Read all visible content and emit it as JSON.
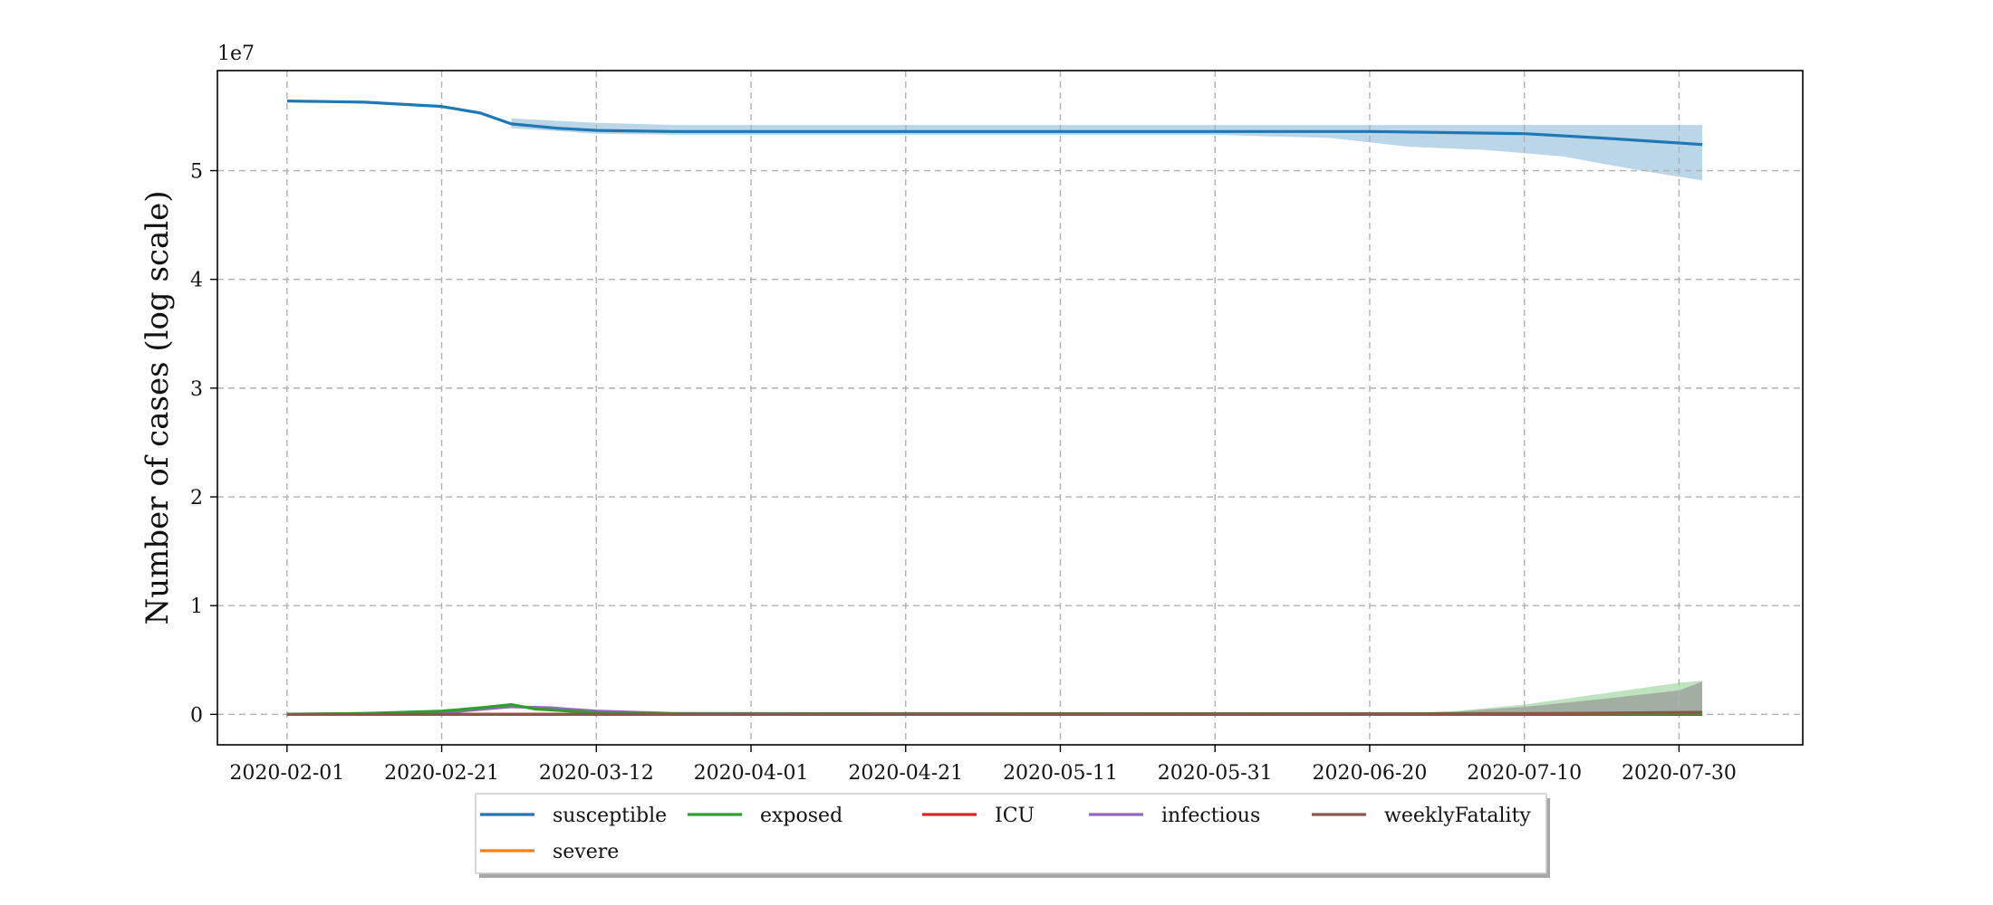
{
  "chart_data": {
    "type": "line",
    "title": "",
    "xlabel": "",
    "ylabel": "Number of cases (log scale)",
    "y_offset_text": "1e7",
    "x_type": "date",
    "x_tick_labels": [
      "2020-02-01",
      "2020-02-21",
      "2020-03-12",
      "2020-04-01",
      "2020-04-21",
      "2020-05-11",
      "2020-05-31",
      "2020-06-20",
      "2020-07-10",
      "2020-07-30"
    ],
    "y_tick_labels": [
      "0",
      "1",
      "2",
      "3",
      "4",
      "5"
    ],
    "y_ticks": [
      0,
      10000000,
      20000000,
      30000000,
      40000000,
      50000000
    ],
    "xlim": [
      "2020-01-23",
      "2020-08-15"
    ],
    "ylim": [
      -2800000,
      59200000
    ],
    "grid": true,
    "legend_position": "bottom-center",
    "series": [
      {
        "name": "susceptible",
        "color": "#1f77b4",
        "points": [
          [
            "2020-02-01",
            56400000
          ],
          [
            "2020-02-11",
            56300000
          ],
          [
            "2020-02-21",
            55900000
          ],
          [
            "2020-02-26",
            55300000
          ],
          [
            "2020-03-01",
            54300000
          ],
          [
            "2020-03-07",
            53900000
          ],
          [
            "2020-03-12",
            53700000
          ],
          [
            "2020-03-22",
            53600000
          ],
          [
            "2020-04-21",
            53600000
          ],
          [
            "2020-05-31",
            53600000
          ],
          [
            "2020-06-20",
            53600000
          ],
          [
            "2020-07-10",
            53400000
          ],
          [
            "2020-07-20",
            53000000
          ],
          [
            "2020-08-02",
            52400000
          ]
        ],
        "band_upper": [
          [
            "2020-03-01",
            54800000
          ],
          [
            "2020-03-12",
            54400000
          ],
          [
            "2020-03-22",
            54200000
          ],
          [
            "2020-08-02",
            54200000
          ]
        ],
        "band_lower": [
          [
            "2020-03-01",
            53900000
          ],
          [
            "2020-03-12",
            53400000
          ],
          [
            "2020-03-22",
            53300000
          ],
          [
            "2020-05-31",
            53300000
          ],
          [
            "2020-06-15",
            53000000
          ],
          [
            "2020-06-25",
            52200000
          ],
          [
            "2020-07-05",
            51900000
          ],
          [
            "2020-07-15",
            51300000
          ],
          [
            "2020-07-25",
            50000000
          ],
          [
            "2020-08-02",
            49100000
          ]
        ]
      },
      {
        "name": "exposed",
        "color": "#2ca02c",
        "points": [
          [
            "2020-02-01",
            20000
          ],
          [
            "2020-02-11",
            80000
          ],
          [
            "2020-02-21",
            300000
          ],
          [
            "2020-02-26",
            600000
          ],
          [
            "2020-03-01",
            900000
          ],
          [
            "2020-03-04",
            500000
          ],
          [
            "2020-03-12",
            150000
          ],
          [
            "2020-03-22",
            50000
          ],
          [
            "2020-06-20",
            50000
          ],
          [
            "2020-08-02",
            100000
          ]
        ],
        "band_upper": [
          [
            "2020-06-20",
            50000
          ],
          [
            "2020-07-01",
            300000
          ],
          [
            "2020-07-10",
            900000
          ],
          [
            "2020-07-20",
            1900000
          ],
          [
            "2020-07-30",
            2900000
          ],
          [
            "2020-08-02",
            3100000
          ]
        ]
      },
      {
        "name": "ICU",
        "color": "#d62728",
        "points": [
          [
            "2020-02-01",
            0
          ],
          [
            "2020-08-02",
            0
          ]
        ]
      },
      {
        "name": "infectious",
        "color": "#9467bd",
        "points": [
          [
            "2020-02-01",
            10000
          ],
          [
            "2020-02-21",
            150000
          ],
          [
            "2020-03-01",
            700000
          ],
          [
            "2020-03-06",
            600000
          ],
          [
            "2020-03-12",
            300000
          ],
          [
            "2020-03-22",
            80000
          ],
          [
            "2020-06-20",
            50000
          ],
          [
            "2020-08-02",
            100000
          ]
        ],
        "band_upper": [
          [
            "2020-06-20",
            50000
          ],
          [
            "2020-07-01",
            250000
          ],
          [
            "2020-07-10",
            700000
          ],
          [
            "2020-07-20",
            1400000
          ],
          [
            "2020-07-30",
            2200000
          ],
          [
            "2020-08-02",
            3000000
          ]
        ]
      },
      {
        "name": "weeklyFatality",
        "color": "#8c564b",
        "points": [
          [
            "2020-02-01",
            0
          ],
          [
            "2020-07-10",
            50000
          ],
          [
            "2020-08-02",
            200000
          ]
        ]
      },
      {
        "name": "severe",
        "color": "#ff7f0e",
        "points": [
          [
            "2020-02-01",
            0
          ],
          [
            "2020-08-02",
            0
          ]
        ]
      }
    ]
  }
}
